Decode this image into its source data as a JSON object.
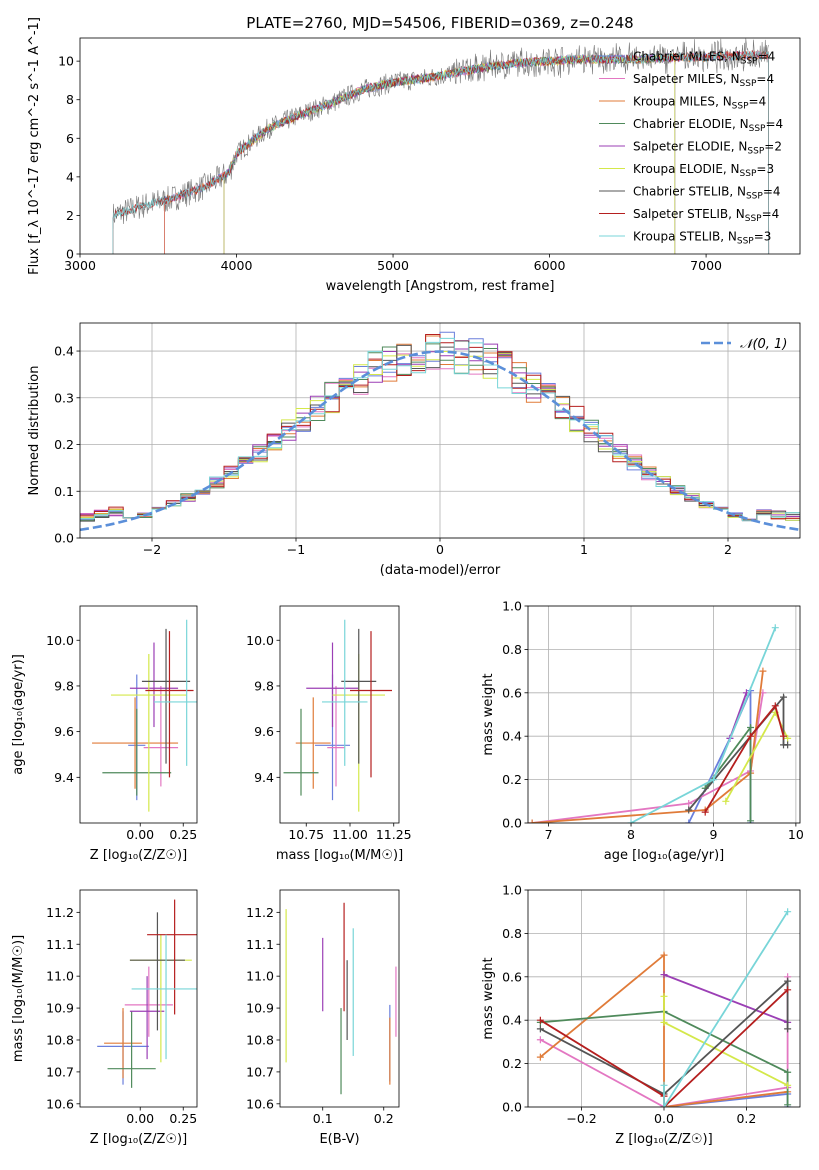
{
  "figure": {
    "title": "PLATE=2760, MJD=54506, FIBERID=0369, z=0.248"
  },
  "colors": {
    "Chabrier MILES": "#6a7fdc",
    "Salpeter MILES": "#e377c2",
    "Kroupa MILES": "#e07b39",
    "Chabrier ELODIE": "#4f8a5b",
    "Salpeter ELODIE": "#9b3fb5",
    "Kroupa ELODIE": "#d4e84a",
    "Chabrier STELIB": "#555555",
    "Salpeter STELIB": "#b51f1f",
    "Kroupa STELIB": "#78d5d8",
    "gaussian": "#5b8fd9"
  },
  "chart_data": [
    {
      "id": "spectrum",
      "type": "line",
      "xlabel": "wavelength [Angstrom, rest frame]",
      "ylabel": "Flux [f_λ 10^-17 erg cm^-2 s^-1 A^-1]",
      "xlim": [
        3000,
        7600
      ],
      "ylim": [
        0,
        11.2
      ],
      "xticks": [
        "3000",
        "4000",
        "5000",
        "6000",
        "7000"
      ],
      "yticks": [
        "0",
        "2",
        "4",
        "6",
        "8",
        "10"
      ],
      "grid": false,
      "legend_position": "top-right",
      "legend": [
        {
          "name": "Chabrier MILES",
          "nssp": "4"
        },
        {
          "name": "Salpeter MILES",
          "nssp": "4"
        },
        {
          "name": "Kroupa MILES",
          "nssp": "4"
        },
        {
          "name": "Chabrier ELODIE",
          "nssp": "4"
        },
        {
          "name": "Salpeter ELODIE",
          "nssp": "2"
        },
        {
          "name": "Kroupa ELODIE",
          "nssp": "3"
        },
        {
          "name": "Chabrier STELIB",
          "nssp": "4"
        },
        {
          "name": "Salpeter STELIB",
          "nssp": "4"
        },
        {
          "name": "Kroupa STELIB",
          "nssp": "3"
        }
      ],
      "data_trend": {
        "x": [
          3210,
          3400,
          3600,
          3800,
          3950,
          4000,
          4200,
          4400,
          4600,
          4800,
          5000,
          5200,
          5400,
          5600,
          5800,
          6000,
          6200,
          6400,
          6600,
          6800,
          7000,
          7200,
          7400
        ],
        "y": [
          2.0,
          2.5,
          2.9,
          3.5,
          4.2,
          5.2,
          6.5,
          7.2,
          7.8,
          8.5,
          8.9,
          9.1,
          9.4,
          9.7,
          9.9,
          10.0,
          10.1,
          10.1,
          10.1,
          10.2,
          10.2,
          10.3,
          10.3
        ]
      },
      "model_starts": {
        "Chabrier MILES": 3540,
        "Salpeter MILES": 3540,
        "Kroupa MILES": 3540,
        "Chabrier ELODIE": 3920,
        "Salpeter ELODIE": 3920,
        "Kroupa ELODIE": 3920,
        "Chabrier STELIB": 3210,
        "Salpeter STELIB": 3210,
        "Kroupa STELIB": 3210
      },
      "model_ends": {
        "Chabrier MILES": 7400,
        "Salpeter MILES": 7400,
        "Kroupa MILES": 7400,
        "Chabrier ELODIE": 6800,
        "Salpeter ELODIE": 6800,
        "Kroupa ELODIE": 6800,
        "Chabrier STELIB": 7400,
        "Salpeter STELIB": 7400,
        "Kroupa STELIB": 7400
      }
    },
    {
      "id": "residuals",
      "type": "histogram",
      "xlabel": "(data-model)/error",
      "ylabel": "Normed distribution",
      "xlim": [
        -2.5,
        2.5
      ],
      "ylim": [
        0,
        0.46
      ],
      "xticks": [
        "−2",
        "−1",
        "0",
        "1",
        "2"
      ],
      "yticks": [
        "0.0",
        "0.1",
        "0.2",
        "0.3",
        "0.4"
      ],
      "grid": true,
      "legend_position": "top-right",
      "gaussian_label": "𝒩(0, 1)",
      "bin_width": 0.1
    },
    {
      "id": "age_vs_Z",
      "type": "errorbar",
      "xlabel": "Z [log₁₀(Z/Z☉)]",
      "ylabel": "age  [log₁₀(age/yr)]",
      "xlim": [
        -0.35,
        0.33
      ],
      "ylim": [
        9.2,
        10.15
      ],
      "xticks": [
        "0.00",
        "0.25"
      ],
      "yticks": [
        "9.4",
        "9.6",
        "9.8",
        "10.0"
      ],
      "grid": false,
      "points": [
        {
          "model": "Chabrier MILES",
          "x": -0.02,
          "xerr": 0.05,
          "y": 9.54,
          "ylo": 9.3,
          "yhi": 9.85
        },
        {
          "model": "Salpeter MILES",
          "x": 0.12,
          "xerr": 0.1,
          "y": 9.53,
          "ylo": 9.36,
          "yhi": 9.8
        },
        {
          "model": "Kroupa MILES",
          "x": -0.03,
          "xerr": 0.25,
          "y": 9.55,
          "ylo": 9.35,
          "yhi": 9.75
        },
        {
          "model": "Chabrier ELODIE",
          "x": -0.02,
          "xerr": 0.2,
          "y": 9.42,
          "ylo": 9.32,
          "yhi": 9.7
        },
        {
          "model": "Salpeter ELODIE",
          "x": 0.08,
          "xerr": 0.14,
          "y": 9.79,
          "ylo": 9.62,
          "yhi": 9.99
        },
        {
          "model": "Kroupa ELODIE",
          "x": 0.05,
          "xerr": 0.22,
          "y": 9.76,
          "ylo": 9.25,
          "yhi": 9.94
        },
        {
          "model": "Chabrier STELIB",
          "x": 0.15,
          "xerr": 0.14,
          "y": 9.82,
          "ylo": 9.46,
          "yhi": 10.05
        },
        {
          "model": "Salpeter STELIB",
          "x": 0.17,
          "xerr": 0.14,
          "y": 9.78,
          "ylo": 9.4,
          "yhi": 10.04
        },
        {
          "model": "Kroupa STELIB",
          "x": 0.27,
          "xerr": 0.19,
          "y": 9.73,
          "ylo": 9.45,
          "yhi": 10.09
        }
      ]
    },
    {
      "id": "age_vs_mass",
      "type": "errorbar",
      "xlabel": "mass [log₁₀(M/M☉)]",
      "ylabel": "",
      "xlim": [
        10.6,
        11.28
      ],
      "ylim": [
        9.2,
        10.15
      ],
      "xticks": [
        "10.75",
        "11.00",
        "11.25"
      ],
      "yticks": [
        "9.4",
        "9.6",
        "9.8",
        "10.0"
      ],
      "grid": false,
      "points": [
        {
          "model": "Chabrier MILES",
          "x": 10.9,
          "xerr": 0.1,
          "y": 9.54,
          "ylo": 9.3,
          "yhi": 9.85
        },
        {
          "model": "Salpeter MILES",
          "x": 10.92,
          "xerr": 0.05,
          "y": 9.53,
          "ylo": 9.36,
          "yhi": 9.8
        },
        {
          "model": "Kroupa MILES",
          "x": 10.79,
          "xerr": 0.1,
          "y": 9.55,
          "ylo": 9.35,
          "yhi": 9.75
        },
        {
          "model": "Chabrier ELODIE",
          "x": 10.72,
          "xerr": 0.1,
          "y": 9.42,
          "ylo": 9.32,
          "yhi": 9.7
        },
        {
          "model": "Salpeter ELODIE",
          "x": 10.9,
          "xerr": 0.15,
          "y": 9.79,
          "ylo": 9.62,
          "yhi": 9.99
        },
        {
          "model": "Kroupa ELODIE",
          "x": 11.05,
          "xerr": 0.15,
          "y": 9.76,
          "ylo": 9.25,
          "yhi": 9.94
        },
        {
          "model": "Chabrier STELIB",
          "x": 11.05,
          "xerr": 0.1,
          "y": 9.82,
          "ylo": 9.46,
          "yhi": 10.05
        },
        {
          "model": "Salpeter STELIB",
          "x": 11.12,
          "xerr": 0.12,
          "y": 9.78,
          "ylo": 9.4,
          "yhi": 10.04
        },
        {
          "model": "Kroupa STELIB",
          "x": 10.97,
          "xerr": 0.13,
          "y": 9.73,
          "ylo": 9.45,
          "yhi": 10.09
        }
      ]
    },
    {
      "id": "weight_vs_age",
      "type": "line",
      "xlabel": "age  [log₁₀(age/yr)]",
      "ylabel": "mass weight",
      "xlim": [
        6.75,
        10.05
      ],
      "ylim": [
        0,
        1.0
      ],
      "xticks": [
        "7",
        "8",
        "9",
        "10"
      ],
      "yticks": [
        "0.0",
        "0.2",
        "0.4",
        "0.6",
        "0.8",
        "1.0"
      ],
      "grid": true,
      "series": [
        {
          "model": "Chabrier MILES",
          "x": [
            8.7,
            9.2,
            9.45,
            9.45
          ],
          "y": [
            0.0,
            0.39,
            0.61,
            0.0
          ]
        },
        {
          "model": "Salpeter MILES",
          "x": [
            6.8,
            8.7,
            9.45,
            9.6
          ],
          "y": [
            0.0,
            0.09,
            0.24,
            0.6
          ]
        },
        {
          "model": "Kroupa MILES",
          "x": [
            6.8,
            8.9,
            9.45,
            9.6
          ],
          "y": [
            0.0,
            0.06,
            0.23,
            0.7
          ]
        },
        {
          "model": "Chabrier ELODIE",
          "x": [
            8.9,
            9.45,
            9.45
          ],
          "y": [
            0.16,
            0.44,
            0.01
          ]
        },
        {
          "model": "Salpeter ELODIE",
          "x": [
            9.2,
            9.4
          ],
          "y": [
            0.39,
            0.6
          ]
        },
        {
          "model": "Kroupa ELODIE",
          "x": [
            9.15,
            9.75,
            9.9
          ],
          "y": [
            0.1,
            0.51,
            0.39
          ]
        },
        {
          "model": "Chabrier STELIB",
          "x": [
            8.7,
            9.85,
            9.85,
            9.9
          ],
          "y": [
            0.06,
            0.58,
            0.36,
            0.36
          ]
        },
        {
          "model": "Salpeter STELIB",
          "x": [
            8.9,
            9.45,
            9.75,
            9.85
          ],
          "y": [
            0.05,
            0.4,
            0.54,
            0.4
          ]
        },
        {
          "model": "Kroupa STELIB",
          "x": [
            8.0,
            9.0,
            9.75
          ],
          "y": [
            0.0,
            0.2,
            0.9
          ]
        }
      ]
    },
    {
      "id": "mass_vs_Z",
      "type": "errorbar",
      "xlabel": "Z [log₁₀(Z/Z☉)]",
      "ylabel": "mass [log₁₀(M/M☉)]",
      "xlim": [
        -0.35,
        0.33
      ],
      "ylim": [
        10.59,
        11.27
      ],
      "xticks": [
        "0.00",
        "0.25"
      ],
      "yticks": [
        "10.6",
        "10.7",
        "10.8",
        "10.9",
        "11.0",
        "11.1",
        "11.2"
      ],
      "grid": false,
      "points": [
        {
          "model": "Chabrier MILES",
          "x": -0.1,
          "xerr": 0.15,
          "y": 10.78,
          "ylo": 10.66,
          "yhi": 10.89
        },
        {
          "model": "Salpeter MILES",
          "x": 0.05,
          "xerr": 0.14,
          "y": 10.91,
          "ylo": 10.81,
          "yhi": 11.03
        },
        {
          "model": "Kroupa MILES",
          "x": -0.1,
          "xerr": 0.11,
          "y": 10.79,
          "ylo": 10.68,
          "yhi": 10.9
        },
        {
          "model": "Chabrier ELODIE",
          "x": -0.05,
          "xerr": 0.14,
          "y": 10.71,
          "ylo": 10.65,
          "yhi": 10.89
        },
        {
          "model": "Salpeter ELODIE",
          "x": 0.04,
          "xerr": 0.1,
          "y": 10.89,
          "ylo": 10.74,
          "yhi": 11.0
        },
        {
          "model": "Kroupa ELODIE",
          "x": 0.12,
          "xerr": 0.18,
          "y": 11.05,
          "ylo": 10.73,
          "yhi": 11.13
        },
        {
          "model": "Chabrier STELIB",
          "x": 0.1,
          "xerr": 0.16,
          "y": 11.05,
          "ylo": 10.83,
          "yhi": 11.2
        },
        {
          "model": "Salpeter STELIB",
          "x": 0.2,
          "xerr": 0.16,
          "y": 11.13,
          "ylo": 10.88,
          "yhi": 11.24
        },
        {
          "model": "Kroupa STELIB",
          "x": 0.15,
          "xerr": 0.2,
          "y": 10.96,
          "ylo": 10.74,
          "yhi": 11.13
        }
      ]
    },
    {
      "id": "mass_vs_ebv",
      "type": "errorbar",
      "xlabel": "E(B-V)",
      "ylabel": "",
      "xlim": [
        0.03,
        0.225
      ],
      "ylim": [
        10.59,
        11.27
      ],
      "xticks": [
        "0.1",
        "0.2"
      ],
      "yticks": [
        "10.6",
        "10.7",
        "10.8",
        "10.9",
        "11.0",
        "11.1",
        "11.2"
      ],
      "grid": false,
      "points": [
        {
          "model": "Chabrier MILES",
          "x": 0.21,
          "ylo": 10.67,
          "yhi": 10.91
        },
        {
          "model": "Salpeter MILES",
          "x": 0.22,
          "ylo": 10.81,
          "yhi": 11.03
        },
        {
          "model": "Kroupa MILES",
          "x": 0.21,
          "ylo": 10.66,
          "yhi": 10.87
        },
        {
          "model": "Chabrier ELODIE",
          "x": 0.13,
          "ylo": 10.63,
          "yhi": 10.9
        },
        {
          "model": "Salpeter ELODIE",
          "x": 0.1,
          "ylo": 10.89,
          "yhi": 11.12
        },
        {
          "model": "Kroupa ELODIE",
          "x": 0.04,
          "ylo": 10.73,
          "yhi": 11.21
        },
        {
          "model": "Chabrier STELIB",
          "x": 0.14,
          "ylo": 10.8,
          "yhi": 11.05
        },
        {
          "model": "Salpeter STELIB",
          "x": 0.135,
          "ylo": 10.89,
          "yhi": 11.23
        },
        {
          "model": "Kroupa STELIB",
          "x": 0.15,
          "ylo": 10.75,
          "yhi": 11.15
        }
      ]
    },
    {
      "id": "weight_vs_Z",
      "type": "line",
      "xlabel": "Z [log₁₀(Z/Z☉)]",
      "ylabel": "mass weight",
      "xlim": [
        -0.33,
        0.33
      ],
      "ylim": [
        0,
        1.0
      ],
      "xticks": [
        "−0.2",
        "0.0",
        "0.2"
      ],
      "yticks": [
        "0.0",
        "0.2",
        "0.4",
        "0.6",
        "0.8",
        "1.0"
      ],
      "grid": true,
      "series": [
        {
          "model": "Chabrier MILES",
          "x": [
            0.0,
            0.3,
            0.3
          ],
          "y": [
            0.0,
            0.06,
            0.0
          ]
        },
        {
          "model": "Salpeter MILES",
          "x": [
            -0.3,
            0.0,
            0.3,
            0.3
          ],
          "y": [
            0.31,
            0.0,
            0.09,
            0.6
          ]
        },
        {
          "model": "Kroupa MILES",
          "x": [
            -0.3,
            0.0,
            0.0,
            0.3
          ],
          "y": [
            0.23,
            0.7,
            0.0,
            0.07
          ]
        },
        {
          "model": "Chabrier ELODIE",
          "x": [
            -0.3,
            0.0,
            0.3,
            0.3
          ],
          "y": [
            0.39,
            0.44,
            0.16,
            0.01
          ]
        },
        {
          "model": "Salpeter ELODIE",
          "x": [
            0.0,
            0.3
          ],
          "y": [
            0.61,
            0.39
          ]
        },
        {
          "model": "Kroupa ELODIE",
          "x": [
            0.0,
            0.0,
            0.3
          ],
          "y": [
            0.51,
            0.39,
            0.1
          ]
        },
        {
          "model": "Chabrier STELIB",
          "x": [
            -0.3,
            0.0,
            0.3,
            0.3
          ],
          "y": [
            0.36,
            0.06,
            0.58,
            0.36
          ]
        },
        {
          "model": "Salpeter STELIB",
          "x": [
            -0.3,
            0.0,
            0.0,
            0.3
          ],
          "y": [
            0.4,
            0.05,
            0.0,
            0.54
          ]
        },
        {
          "model": "Kroupa STELIB",
          "x": [
            0.0,
            0.0,
            0.3
          ],
          "y": [
            0.1,
            0.0,
            0.9
          ]
        }
      ]
    }
  ]
}
